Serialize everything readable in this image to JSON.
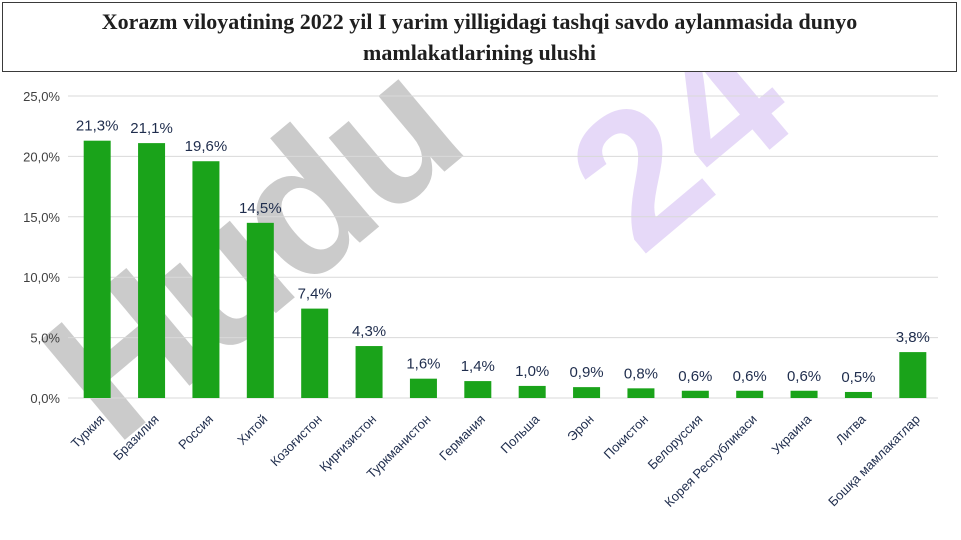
{
  "title": "Xorazm viloyatining 2022 yil I yarim yilligidagi tashqi savdo aylanmasida dunyo mamlakatlarining ulushi",
  "watermark_left": "Hudu",
  "watermark_right": "24",
  "colors": {
    "bar": "#1aa31a",
    "grid": "#d9d9d9",
    "tick": "#404040",
    "label": "#1f2d4d"
  },
  "chart_data": {
    "type": "bar",
    "title": "",
    "xlabel": "",
    "ylabel": "",
    "categories": [
      "Туркия",
      "Бразилия",
      "Россия",
      "Хитой",
      "Козоғистон",
      "Қирғизистон",
      "Туркманистон",
      "Германия",
      "Польша",
      "Эрон",
      "Покистон",
      "Белоруссия",
      "Корея Республикаси",
      "Украина",
      "Литва",
      "Бошқа мамлакатлар"
    ],
    "values": [
      21.3,
      21.1,
      19.6,
      14.5,
      7.4,
      4.3,
      1.6,
      1.4,
      1.0,
      0.9,
      0.8,
      0.6,
      0.6,
      0.6,
      0.5,
      3.8
    ],
    "data_labels": [
      "21,3%",
      "21,1%",
      "19,6%",
      "14,5%",
      "7,4%",
      "4,3%",
      "1,6%",
      "1,4%",
      "1,0%",
      "0,9%",
      "0,8%",
      "0,6%",
      "0,6%",
      "0,6%",
      "0,5%",
      "3,8%"
    ],
    "ylim": [
      0,
      25
    ],
    "yticks": [
      0,
      5,
      10,
      15,
      20,
      25
    ],
    "ytick_labels": [
      "0,0%",
      "5,0%",
      "10,0%",
      "15,0%",
      "20,0%",
      "25,0%"
    ],
    "grid": true,
    "legend": "none"
  }
}
